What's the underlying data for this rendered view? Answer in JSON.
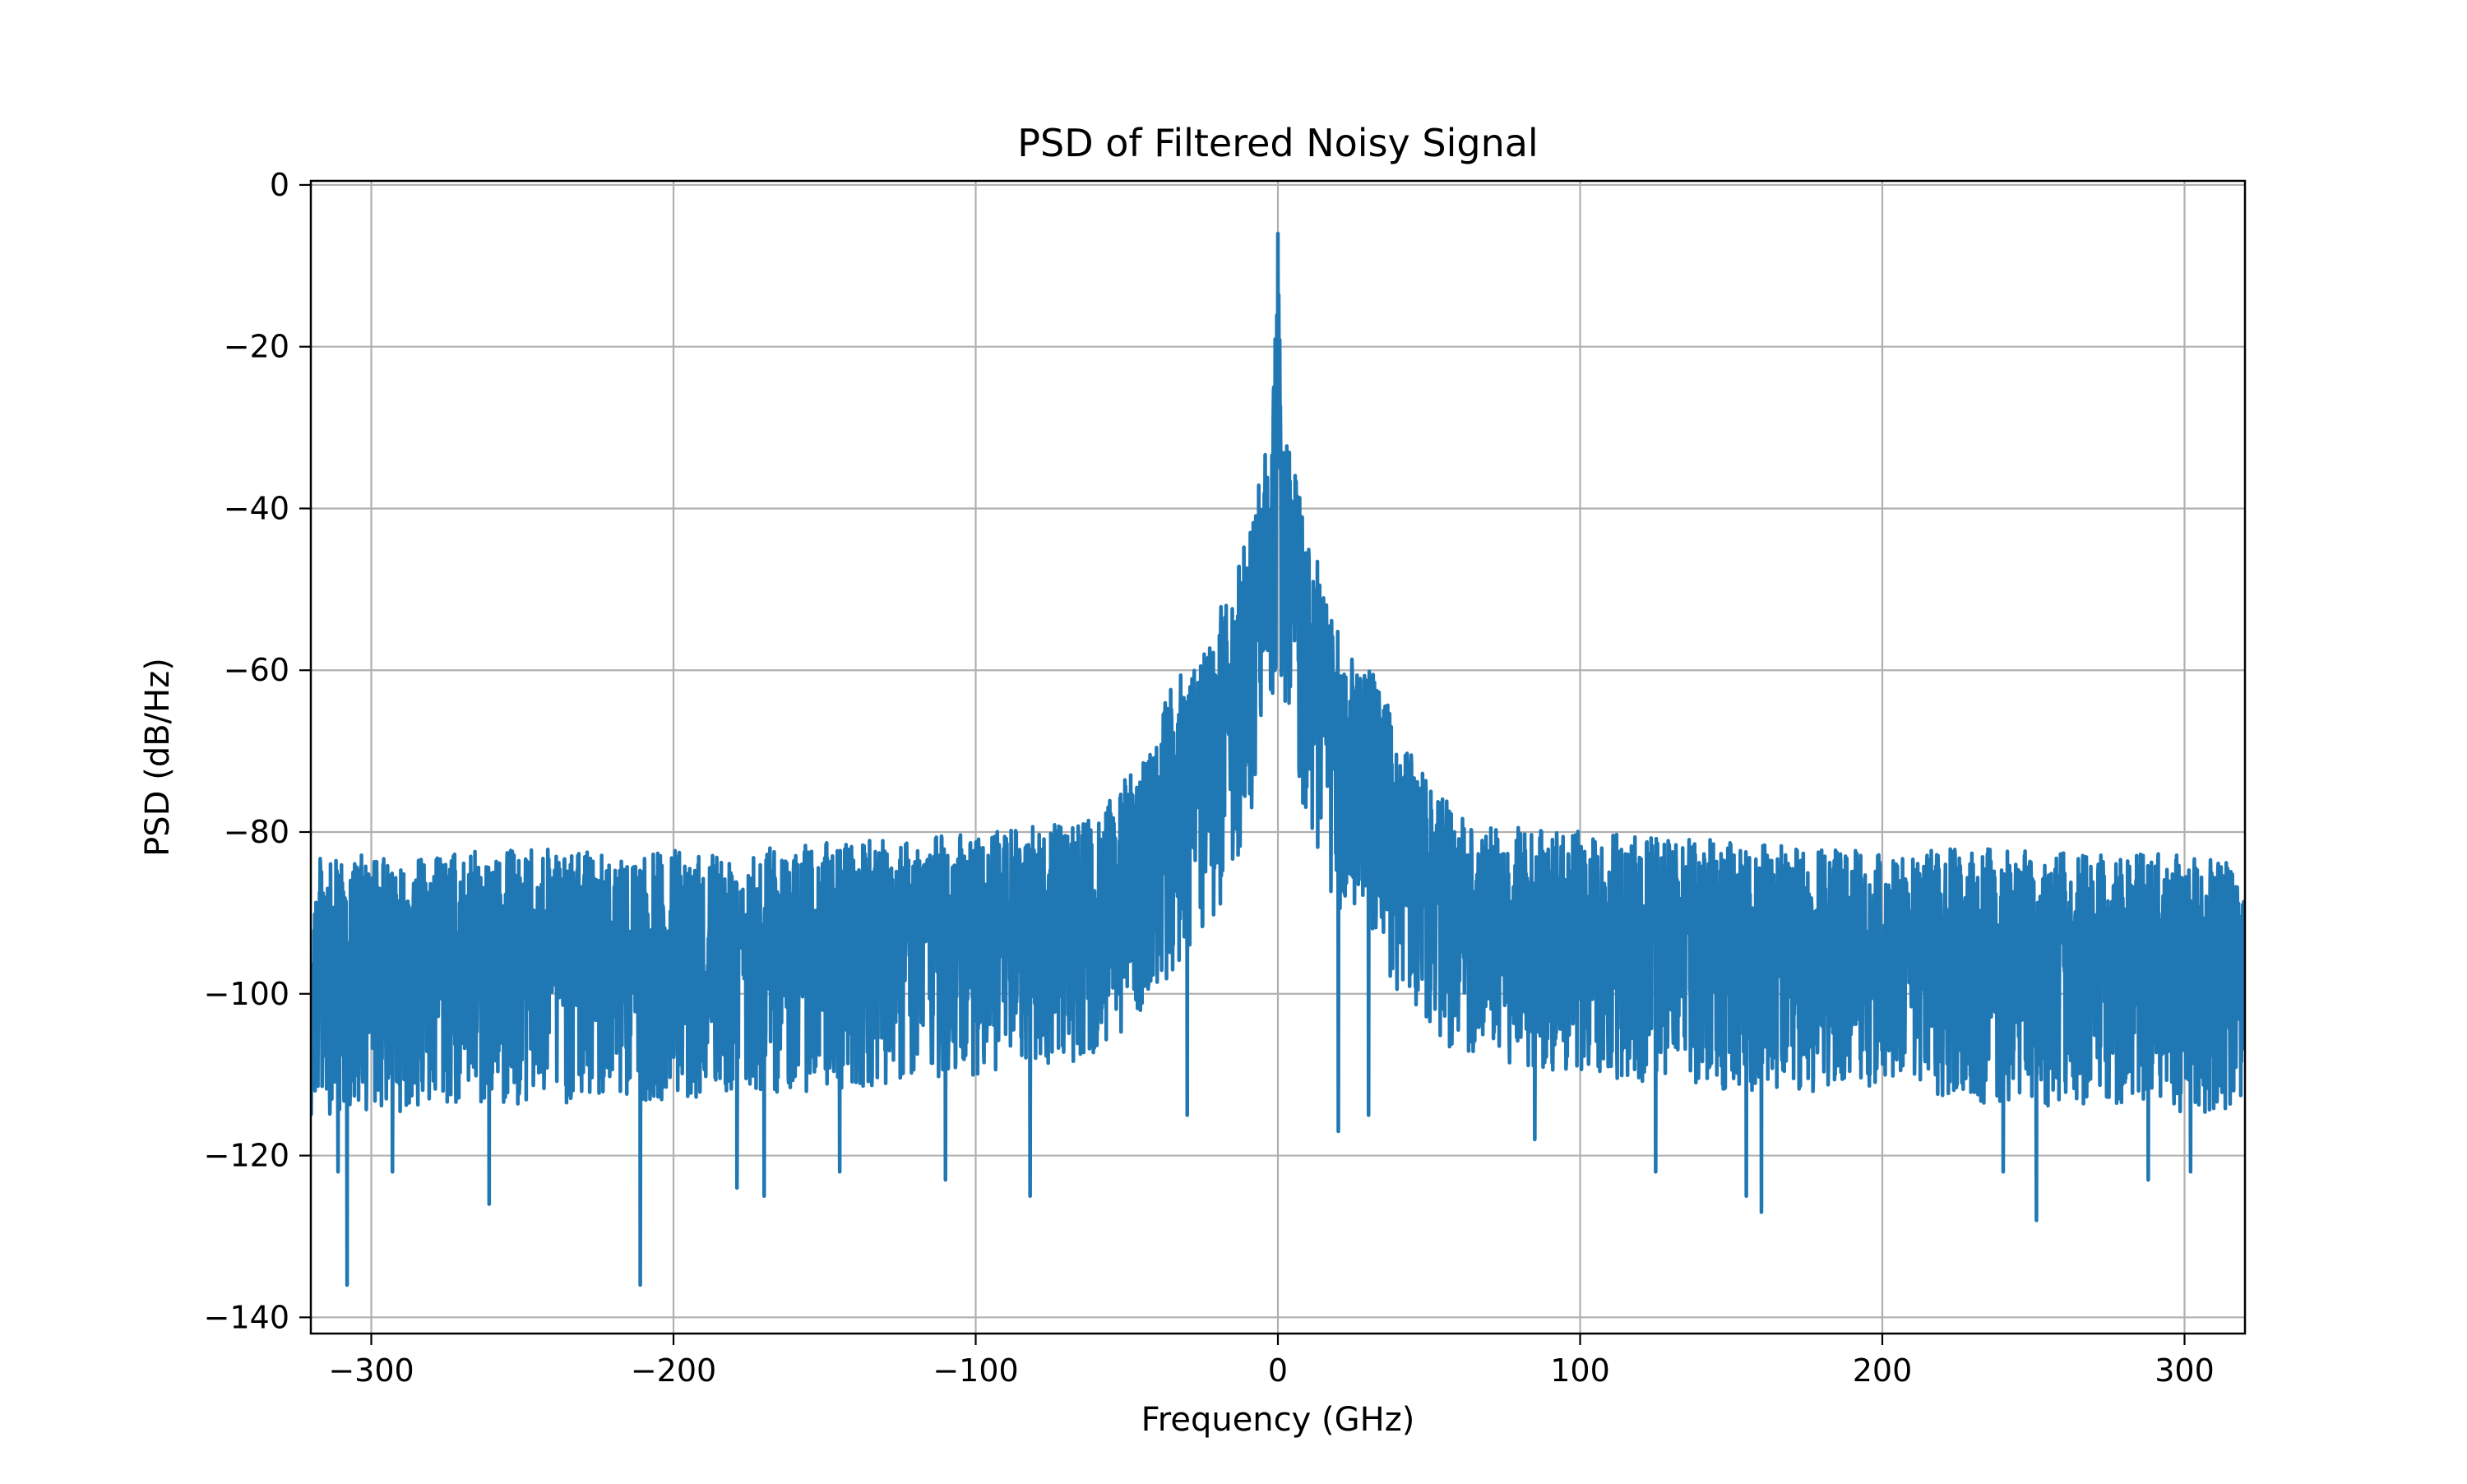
{
  "chart_data": {
    "type": "line",
    "title": "PSD of Filtered Noisy Signal",
    "xlabel": "Frequency (GHz)",
    "ylabel": "PSD (dB/Hz)",
    "xlim": [
      -320,
      320
    ],
    "ylim": [
      -142,
      0.5
    ],
    "xticks": [
      -300,
      -200,
      -100,
      0,
      100,
      200,
      300
    ],
    "xtick_labels": [
      "−300",
      "−200",
      "−100",
      "0",
      "100",
      "200",
      "300"
    ],
    "yticks": [
      0,
      -20,
      -40,
      -60,
      -80,
      -100,
      -120,
      -140
    ],
    "ytick_labels": [
      "0",
      "−20",
      "−40",
      "−60",
      "−80",
      "−100",
      "−120",
      "−140"
    ],
    "grid": true,
    "legend": "none",
    "series": [
      {
        "color": "#1f77b4",
        "peak": {
          "x": 0,
          "y": -6
        },
        "envelope_upper": [
          [
            -320,
            -82
          ],
          [
            -250,
            -81
          ],
          [
            -200,
            -81
          ],
          [
            -150,
            -80
          ],
          [
            -100,
            -79
          ],
          [
            -80,
            -78
          ],
          [
            -60,
            -77
          ],
          [
            -50,
            -72
          ],
          [
            -40,
            -66
          ],
          [
            -35,
            -60
          ],
          [
            -25,
            -57
          ],
          [
            -20,
            -52
          ],
          [
            -15,
            -47
          ],
          [
            -10,
            -42
          ],
          [
            -5,
            -32
          ],
          [
            -2,
            -29
          ],
          [
            0,
            -6
          ],
          [
            2,
            -29
          ],
          [
            5,
            -32
          ],
          [
            10,
            -42
          ],
          [
            15,
            -47
          ],
          [
            20,
            -52
          ],
          [
            25,
            -57
          ],
          [
            35,
            -60
          ],
          [
            40,
            -66
          ],
          [
            50,
            -72
          ],
          [
            60,
            -77
          ],
          [
            80,
            -78
          ],
          [
            100,
            -79
          ],
          [
            150,
            -80
          ],
          [
            200,
            -81
          ],
          [
            250,
            -81
          ],
          [
            320,
            -82
          ]
        ],
        "envelope_lower": [
          [
            -320,
            -115
          ],
          [
            -250,
            -114
          ],
          [
            -200,
            -113
          ],
          [
            -150,
            -112
          ],
          [
            -100,
            -110
          ],
          [
            -60,
            -108
          ],
          [
            -40,
            -100
          ],
          [
            -20,
            -90
          ],
          [
            -10,
            -80
          ],
          [
            -5,
            -70
          ],
          [
            0,
            -60
          ],
          [
            5,
            -70
          ],
          [
            10,
            -80
          ],
          [
            20,
            -90
          ],
          [
            40,
            -100
          ],
          [
            60,
            -108
          ],
          [
            100,
            -110
          ],
          [
            150,
            -112
          ],
          [
            200,
            -113
          ],
          [
            250,
            -114
          ],
          [
            320,
            -115
          ]
        ],
        "deep_dips": [
          [
            -308,
            -136
          ],
          [
            -311,
            -122
          ],
          [
            -293,
            -122
          ],
          [
            -261,
            -126
          ],
          [
            -211,
            -136
          ],
          [
            -179,
            -124
          ],
          [
            -170,
            -125
          ],
          [
            -145,
            -122
          ],
          [
            -110,
            -123
          ],
          [
            -82,
            -125
          ],
          [
            -30,
            -115
          ],
          [
            0,
            -76
          ],
          [
            20,
            -117
          ],
          [
            30,
            -115
          ],
          [
            85,
            -118
          ],
          [
            125,
            -122
          ],
          [
            155,
            -125
          ],
          [
            160,
            -127
          ],
          [
            240,
            -122
          ],
          [
            251,
            -128
          ],
          [
            288,
            -123
          ],
          [
            302,
            -122
          ]
        ]
      }
    ]
  }
}
